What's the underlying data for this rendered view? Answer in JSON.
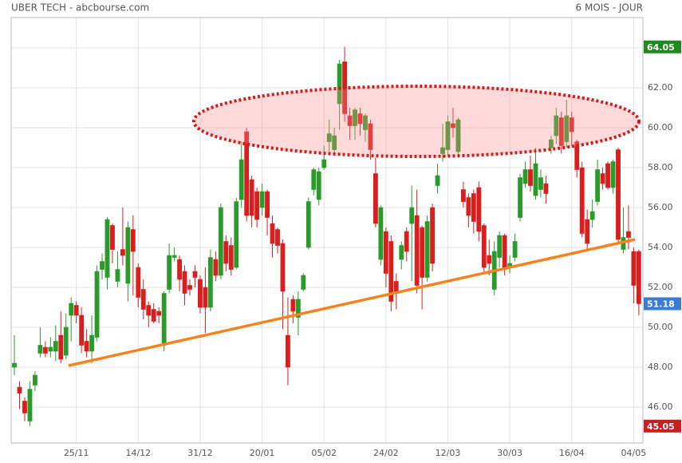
{
  "chart_data": {
    "type": "candlestick",
    "title": "UBER TECH - abcbourse.com",
    "subtitle": "6 MOIS - JOUR",
    "categories": [
      null,
      null,
      null,
      null,
      null,
      null,
      null,
      null,
      null,
      null,
      null,
      null,
      "25/11",
      null,
      null,
      null,
      null,
      null,
      null,
      null,
      null,
      null,
      null,
      null,
      "14/12",
      null,
      null,
      null,
      null,
      null,
      null,
      null,
      null,
      null,
      null,
      null,
      "31/12",
      null,
      null,
      null,
      null,
      null,
      null,
      null,
      null,
      null,
      null,
      null,
      "20/01",
      null,
      null,
      null,
      null,
      null,
      null,
      null,
      null,
      null,
      null,
      null,
      "05/02",
      null,
      null,
      null,
      null,
      null,
      null,
      null,
      null,
      null,
      null,
      null,
      "24/02",
      null,
      null,
      null,
      null,
      null,
      null,
      null,
      null,
      null,
      null,
      null,
      "12/03",
      null,
      null,
      null,
      null,
      null,
      null,
      null,
      null,
      null,
      null,
      null,
      "30/03",
      null,
      null,
      null,
      null,
      null,
      null,
      null,
      null,
      null,
      null,
      null,
      "16/04",
      null,
      null,
      null,
      null,
      null,
      null,
      null,
      null,
      null,
      null,
      null,
      "04/05",
      null
    ],
    "open": [
      48.0,
      47.0,
      46.3,
      45.3,
      47.1,
      48.7,
      49.0,
      48.8,
      48.8,
      49.6,
      48.6,
      50.6,
      51.1,
      50.6,
      49.3,
      48.8,
      49.5,
      52.9,
      52.5,
      55.1,
      52.3,
      53.9,
      52.2,
      54.9,
      53.0,
      51.9,
      51.1,
      50.9,
      50.8,
      49.1,
      51.9,
      53.5,
      53.4,
      52.8,
      52.1,
      52.8,
      52.4,
      52.0,
      51.0,
      53.4,
      52.6,
      54.3,
      54.1,
      53.0,
      56.4,
      59.8,
      57.4,
      56.8,
      56.0,
      56.8,
      55.2,
      54.9,
      54.2,
      49.6,
      51.4,
      50.5,
      51.9,
      54.0,
      56.9,
      56.4,
      58.0,
      59.3,
      58.9,
      61.2,
      63.3,
      60.6,
      60.1,
      60.7,
      59.9,
      60.2,
      57.7,
      53.4,
      54.8,
      54.3,
      52.3,
      53.4,
      54.8,
      55.2,
      55.6,
      55.0,
      52.5,
      56.0,
      57.1,
      58.7,
      58.9,
      60.2,
      58.8,
      56.9,
      56.5,
      56.7,
      57.0,
      55.1,
      53.6,
      51.9,
      53.5,
      54.6,
      53.0,
      53.5,
      55.5,
      57.2,
      57.9,
      56.6,
      56.9,
      57.2,
      59.0,
      59.6,
      60.5,
      59.3,
      60.5,
      59.3,
      58.0,
      55.4,
      55.4,
      56.3,
      57.7,
      58.2,
      57.0,
      58.9,
      53.9,
      54.8,
      53.8,
      53.8
    ],
    "high": [
      49.6,
      47.3,
      46.5,
      47.3,
      47.8,
      50.0,
      49.3,
      49.5,
      50.1,
      50.8,
      50.7,
      51.5,
      51.3,
      51.0,
      49.9,
      50.6,
      53.1,
      53.7,
      55.5,
      55.2,
      53.8,
      56.0,
      55.3,
      55.6,
      53.2,
      52.4,
      51.3,
      51.2,
      51.0,
      51.8,
      54.2,
      54.0,
      53.6,
      53.1,
      52.4,
      53.1,
      52.6,
      53.0,
      53.9,
      53.8,
      56.2,
      54.6,
      54.5,
      56.5,
      59.3,
      60.0,
      57.6,
      57.0,
      57.2,
      56.9,
      55.6,
      55.0,
      54.4,
      51.5,
      51.6,
      51.8,
      52.7,
      56.5,
      58.0,
      58.0,
      59.1,
      60.4,
      60.0,
      63.4,
      64.05,
      61.0,
      61.0,
      61.0,
      60.7,
      60.4,
      58.5,
      56.1,
      55.0,
      54.6,
      52.7,
      54.3,
      55.0,
      57.1,
      56.9,
      55.1,
      55.6,
      56.2,
      58.2,
      60.2,
      60.6,
      61.0,
      60.5,
      57.3,
      56.7,
      56.9,
      57.3,
      55.2,
      54.4,
      54.3,
      54.8,
      54.7,
      53.6,
      54.7,
      57.7,
      58.3,
      58.6,
      59.0,
      57.9,
      57.6,
      59.6,
      61.0,
      60.8,
      61.4,
      60.8,
      59.4,
      58.3,
      55.9,
      56.4,
      58.4,
      58.0,
      58.3,
      58.4,
      59.0,
      56.0,
      56.1,
      54.0,
      53.9
    ],
    "low": [
      47.6,
      45.9,
      45.3,
      45.05,
      46.8,
      48.5,
      48.5,
      48.5,
      48.3,
      48.2,
      48.4,
      49.3,
      50.2,
      48.7,
      48.5,
      48.2,
      49.3,
      52.4,
      51.9,
      53.2,
      52.0,
      53.1,
      51.3,
      51.6,
      51.0,
      50.4,
      50.0,
      50.2,
      50.2,
      48.8,
      51.7,
      53.3,
      51.8,
      51.1,
      51.6,
      52.0,
      50.7,
      49.7,
      50.8,
      52.3,
      52.4,
      52.8,
      52.6,
      52.9,
      56.0,
      55.3,
      55.0,
      55.0,
      55.6,
      54.6,
      53.5,
      53.7,
      49.9,
      47.1,
      50.2,
      49.6,
      51.8,
      53.9,
      56.6,
      56.1,
      57.9,
      58.8,
      58.6,
      59.9,
      60.3,
      59.4,
      59.4,
      59.6,
      59.3,
      58.4,
      55.0,
      53.1,
      52.0,
      50.8,
      50.9,
      52.9,
      53.3,
      52.3,
      51.7,
      50.9,
      52.3,
      52.8,
      56.7,
      58.3,
      58.6,
      59.5,
      58.5,
      56.0,
      55.0,
      54.7,
      54.3,
      52.8,
      52.6,
      51.6,
      53.0,
      52.6,
      52.7,
      53.3,
      55.3,
      57.0,
      56.8,
      56.4,
      56.5,
      56.2,
      58.7,
      59.2,
      58.7,
      59.0,
      59.1,
      57.5,
      54.5,
      53.8,
      55.0,
      56.1,
      56.9,
      56.9,
      56.7,
      54.2,
      53.7,
      53.9,
      51.2,
      50.6
    ],
    "close": [
      48.2,
      46.7,
      45.7,
      46.9,
      47.6,
      49.1,
      48.7,
      49.0,
      49.3,
      48.4,
      50.0,
      51.2,
      50.6,
      49.1,
      48.8,
      49.6,
      52.8,
      53.3,
      55.4,
      53.9,
      52.9,
      53.6,
      55.0,
      53.8,
      51.5,
      50.9,
      50.6,
      50.3,
      50.6,
      51.7,
      53.6,
      53.6,
      52.4,
      51.7,
      51.9,
      52.5,
      51.0,
      51.0,
      53.5,
      52.6,
      56.0,
      53.2,
      52.9,
      56.3,
      58.4,
      55.6,
      55.6,
      55.4,
      56.8,
      55.5,
      54.2,
      54.1,
      51.8,
      48.0,
      50.8,
      51.4,
      52.6,
      56.3,
      57.9,
      57.8,
      58.4,
      59.7,
      59.6,
      63.2,
      60.7,
      60.1,
      60.9,
      60.2,
      60.6,
      58.9,
      55.2,
      56.0,
      52.7,
      51.3,
      51.7,
      54.1,
      53.8,
      56.0,
      52.1,
      52.5,
      55.3,
      53.2,
      57.6,
      59.0,
      60.3,
      60.0,
      60.4,
      56.3,
      55.6,
      55.3,
      54.8,
      53.0,
      53.2,
      53.8,
      54.6,
      52.9,
      53.2,
      54.3,
      57.5,
      57.9,
      57.1,
      58.2,
      57.5,
      56.7,
      59.4,
      60.6,
      59.1,
      60.6,
      59.8,
      57.9,
      54.7,
      54.2,
      55.8,
      57.9,
      57.2,
      57.0,
      58.3,
      54.4,
      54.5,
      54.5,
      52.1,
      51.18
    ],
    "up_color": "#2a9a2a",
    "down_color": "#d81e1e",
    "ylim": [
      44.2,
      65.52
    ],
    "yticks": [
      {
        "value": 46,
        "label": "46.00"
      },
      {
        "value": 48,
        "label": "48.00"
      },
      {
        "value": 50,
        "label": "50.00"
      },
      {
        "value": 52,
        "label": "52.00"
      },
      {
        "value": 54,
        "label": "54.00"
      },
      {
        "value": 56,
        "label": "56.00"
      },
      {
        "value": 58,
        "label": "58.00"
      },
      {
        "value": 60,
        "label": "60.00"
      },
      {
        "value": 62,
        "label": "62.00"
      },
      {
        "value": 64,
        "label": "64.00"
      }
    ],
    "grid": true,
    "markers": [
      {
        "value": 64.05,
        "color": "#1e8a1e"
      },
      {
        "value": 51.18,
        "color": "#3a7bd5"
      },
      {
        "value": 45.05,
        "color": "#c81e1e"
      }
    ]
  }
}
